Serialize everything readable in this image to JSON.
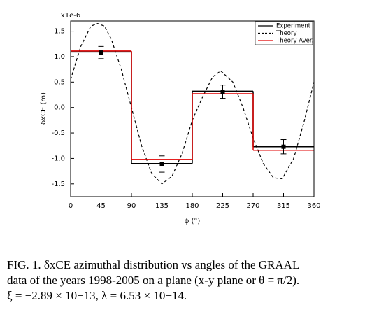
{
  "chart_data": {
    "type": "step",
    "multiplier_label": "x1e-6",
    "y_label": "δxCE (m)",
    "x_label": "ϕ (°)",
    "xlim": [
      0,
      360
    ],
    "xticks": [
      0,
      45,
      90,
      135,
      180,
      225,
      270,
      315,
      360
    ],
    "ylim": [
      -1.75,
      1.7
    ],
    "yticks": [
      {
        "value": -1.5,
        "label": "-1.5"
      },
      {
        "value": -1.0,
        "label": "-1.0"
      },
      {
        "value": -0.5,
        "label": "-0.5"
      },
      {
        "value": 0,
        "label": "0.0"
      },
      {
        "value": 0.5,
        "label": "0.5"
      },
      {
        "value": 1.0,
        "label": "1.0"
      },
      {
        "value": 1.5,
        "label": "1.5"
      }
    ],
    "legend": "upper right",
    "series": [
      {
        "name": "Experiment",
        "color": "#000000",
        "kind": "step",
        "bins": [
          0,
          90,
          180,
          270,
          360
        ],
        "values": [
          1.09,
          -1.1,
          0.32,
          -0.77
        ]
      },
      {
        "name": "Theory",
        "color": "#000000",
        "kind": "dashed",
        "x": [
          0,
          15,
          30,
          40,
          50,
          60,
          75,
          90,
          105,
          120,
          135,
          150,
          165,
          180,
          195,
          210,
          222,
          240,
          255,
          270,
          285,
          300,
          313,
          330,
          345,
          360
        ],
        "values": [
          0.55,
          1.2,
          1.6,
          1.65,
          1.6,
          1.35,
          0.75,
          0.0,
          -0.75,
          -1.3,
          -1.5,
          -1.35,
          -0.9,
          -0.25,
          0.2,
          0.6,
          0.72,
          0.5,
          0.0,
          -0.6,
          -1.1,
          -1.38,
          -1.4,
          -1.0,
          -0.3,
          0.5
        ]
      },
      {
        "name": "Theory Aver.",
        "color": "#e00000",
        "kind": "step",
        "bins": [
          0,
          90,
          180,
          270,
          360
        ],
        "values": [
          1.11,
          -1.02,
          0.27,
          -0.84
        ]
      }
    ],
    "points": {
      "color": "#000000",
      "x": [
        45,
        135,
        225,
        315
      ],
      "values": [
        1.08,
        -1.11,
        0.31,
        -0.77
      ],
      "errors": [
        0.12,
        0.16,
        0.13,
        0.14
      ]
    }
  },
  "caption": {
    "lines": [
      "FIG. 1. δxCE azimuthal distribution vs angles of the GRAAL",
      "data of the years 1998-2005 on a plane (x-y plane or θ = π/2).",
      "ξ = −2.89 × 10−13, λ = 6.53 × 10−14."
    ]
  }
}
